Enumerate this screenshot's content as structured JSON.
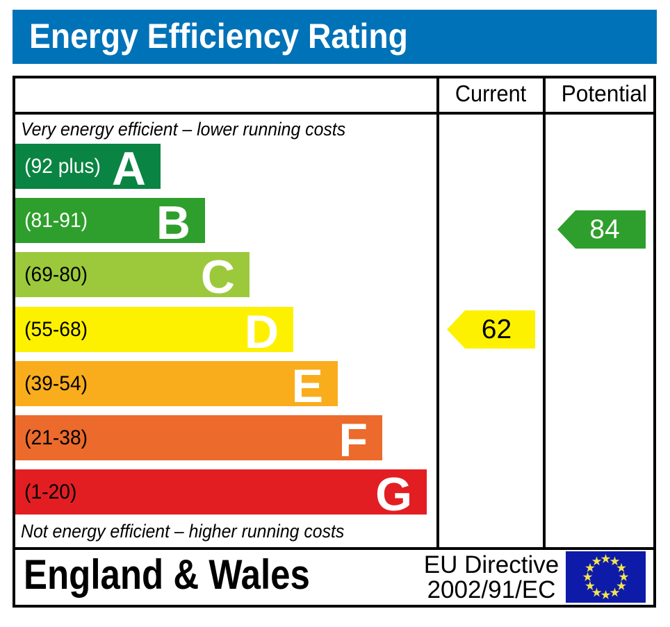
{
  "title": "Energy Efficiency Rating",
  "columns": {
    "current": "Current",
    "potential": "Potential"
  },
  "captions": {
    "top": "Very energy efficient – lower running costs",
    "bottom": "Not energy efficient – higher running costs"
  },
  "bands": [
    {
      "letter": "A",
      "range": "(92 plus)",
      "color": "#0a8442",
      "label_color": "#ffffff"
    },
    {
      "letter": "B",
      "range": "(81-91)",
      "color": "#2e9f2c",
      "label_color": "#ffffff"
    },
    {
      "letter": "C",
      "range": "(69-80)",
      "color": "#9cc93c",
      "label_color": "#000000"
    },
    {
      "letter": "D",
      "range": "(55-68)",
      "color": "#fdf100",
      "label_color": "#000000"
    },
    {
      "letter": "E",
      "range": "(39-54)",
      "color": "#f9ad1d",
      "label_color": "#000000"
    },
    {
      "letter": "F",
      "range": "(21-38)",
      "color": "#ec6a2b",
      "label_color": "#000000"
    },
    {
      "letter": "G",
      "range": "(1-20)",
      "color": "#e21e23",
      "label_color": "#000000"
    }
  ],
  "ratings": {
    "current": {
      "value": "62",
      "band": "D",
      "color": "#fdf100",
      "text_color": "#000000"
    },
    "potential": {
      "value": "84",
      "band": "B",
      "color": "#2e9f2c",
      "text_color": "#ffffff"
    }
  },
  "footer": {
    "region": "England & Wales",
    "directive_line1": "EU Directive",
    "directive_line2": "2002/91/EC",
    "flag_background": "#0e1ba8",
    "flag_star_color": "#f2e44d"
  },
  "theme": {
    "title_bar_background": "#0072b8",
    "title_text_color": "#ffffff",
    "border_color": "#000000"
  },
  "chart_data": {
    "type": "bar",
    "orientation": "horizontal",
    "title": "Energy Efficiency Rating",
    "categories": [
      "A",
      "B",
      "C",
      "D",
      "E",
      "F",
      "G"
    ],
    "ranges": [
      "92 plus",
      "81-91",
      "69-80",
      "55-68",
      "39-54",
      "21-38",
      "1-20"
    ],
    "band_colors": [
      "#0a8442",
      "#2e9f2c",
      "#9cc93c",
      "#fdf100",
      "#f9ad1d",
      "#ec6a2b",
      "#e21e23"
    ],
    "markers": [
      {
        "name": "Current",
        "value": 62,
        "band": "D"
      },
      {
        "name": "Potential",
        "value": 84,
        "band": "B"
      }
    ],
    "scale_min": 1,
    "scale_max": 100,
    "legend_position": "none",
    "region": "England & Wales",
    "directive": "EU Directive 2002/91/EC"
  }
}
